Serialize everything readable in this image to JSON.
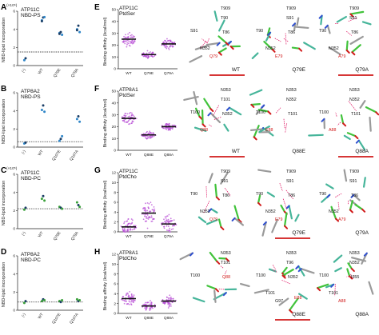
{
  "colors": {
    "blue": "#2f86c8",
    "green": "#3aa13a",
    "purple": "#b84fd6",
    "red": "#d11a1a",
    "dark": "#1b3e66",
    "stick_green": "#41c33b",
    "stick_teal": "#46b59a",
    "stick_blue": "#3050d0",
    "stick_grey": "#9a9a9a"
  },
  "panels_left": [
    {
      "letter": "A",
      "protein": "ATP11C",
      "lipid": "NBD-PS",
      "lipid_color": "blue",
      "exp": "(×10⁶)",
      "ymax": 6,
      "yticks": [
        "0",
        "2",
        "4",
        "6"
      ],
      "xlabels": [
        "(-)",
        "WT",
        "Q79E",
        "Q79A"
      ],
      "baseline": 1.5,
      "chart_data": {
        "type": "scatter",
        "categories": [
          "(-)",
          "WT",
          "Q79E",
          "Q79A"
        ],
        "values": [
          [
            0.6,
            0.8
          ],
          [
            5.0,
            5.3,
            5.35,
            4.9
          ],
          [
            3.6,
            3.7,
            3.4,
            3.5
          ],
          [
            4.0,
            4.4,
            3.7,
            3.9
          ]
        ]
      }
    },
    {
      "letter": "B",
      "protein": "ATP8A2",
      "lipid": "NBD-PS",
      "lipid_color": "blue",
      "exp": "",
      "ymax": 6,
      "yticks": [
        "0",
        "2",
        "4",
        "6"
      ],
      "xlabels": [
        "(-)",
        "WT",
        "Q107E",
        "Q107A"
      ],
      "baseline": 0.6,
      "chart_data": {
        "type": "scatter",
        "categories": [
          "(-)",
          "WT",
          "Q107E",
          "Q107A"
        ],
        "values": [
          [
            0.4,
            0.5
          ],
          [
            4.1,
            4.6,
            3.9
          ],
          [
            0.7,
            0.9,
            1.2
          ],
          [
            3.1,
            3.4,
            2.8
          ]
        ]
      }
    },
    {
      "letter": "C",
      "protein": "ATP11C",
      "lipid": "NBD-PC",
      "lipid_color": "green",
      "exp": "(×10⁵)",
      "ymax": 6,
      "yticks": [
        "0",
        "2",
        "4",
        "6"
      ],
      "xlabels": [
        "(-)",
        "WT",
        "Q79E",
        "Q79A"
      ],
      "baseline": 2.2,
      "chart_data": {
        "type": "scatter",
        "categories": [
          "(-)",
          "WT",
          "Q79E",
          "Q79A"
        ],
        "values": [
          [
            2.1,
            2.3
          ],
          [
            3.3,
            3.6,
            3.1
          ],
          [
            2.4,
            2.3,
            2.2
          ],
          [
            2.9,
            2.6,
            2.4
          ]
        ]
      }
    },
    {
      "letter": "D",
      "protein": "ATP8A2",
      "lipid": "NBD-PC",
      "lipid_color": "green",
      "exp": "",
      "ymax": 6,
      "yticks": [
        "0",
        "2",
        "4",
        "6"
      ],
      "xlabels": [
        "(-)",
        "WT",
        "Q107E",
        "Q107A"
      ],
      "baseline": 0.9,
      "chart_data": {
        "type": "scatter",
        "categories": [
          "(-)",
          "WT",
          "Q107E",
          "Q107A"
        ],
        "values": [
          [
            0.8,
            1.0
          ],
          [
            1.0,
            1.2,
            1.1
          ],
          [
            1.0,
            0.9,
            1.1
          ],
          [
            1.2,
            1.0,
            1.1
          ]
        ]
      }
    }
  ],
  "y_label_left": "NBD-lipid incorporation",
  "panels_mid": [
    {
      "letter": "E",
      "protein": "ATP11C",
      "lipid": "PtdSer",
      "lipid_color": "blue",
      "yticks": [
        "0",
        "10",
        "20",
        "30",
        "40",
        "50"
      ],
      "xlabels": [
        "WT",
        "Q79E",
        "Q79A"
      ],
      "chart_data": {
        "type": "scatter",
        "categories": [
          "WT",
          "Q79E",
          "Q79A"
        ],
        "medians": [
          25,
          12,
          21
        ],
        "spreads": [
          8,
          4,
          6
        ]
      }
    },
    {
      "letter": "F",
      "protein": "ATP8A1",
      "lipid": "PtdSer",
      "lipid_color": "blue",
      "yticks": [
        "0",
        "10",
        "20",
        "30",
        "40",
        "50"
      ],
      "xlabels": [
        "WT",
        "Q88E",
        "Q88A"
      ],
      "chart_data": {
        "type": "scatter",
        "categories": [
          "WT",
          "Q88E",
          "Q88A"
        ],
        "medians": [
          27,
          13,
          20
        ],
        "spreads": [
          7,
          4,
          4
        ]
      }
    },
    {
      "letter": "G",
      "protein": "ATP11C",
      "lipid": "PtdCho",
      "lipid_color": "green",
      "yticks": [
        "0",
        "2",
        "4",
        "6",
        "8",
        "10",
        "12"
      ],
      "xlabels": [
        "WT",
        "Q79E",
        "Q79A"
      ],
      "chart_data": {
        "type": "scatter",
        "categories": [
          "WT",
          "Q79E",
          "Q79A"
        ],
        "medians": [
          1.0,
          3.8,
          1.6
        ],
        "spreads": [
          2.5,
          3.5,
          2.5
        ]
      }
    },
    {
      "letter": "H",
      "protein": "ATP8A1",
      "lipid": "PtdCho",
      "lipid_color": "green",
      "yticks": [
        "0",
        "2",
        "4",
        "6",
        "8",
        "10",
        "12"
      ],
      "xlabels": [
        "WT",
        "Q88E",
        "Q88A"
      ],
      "chart_data": {
        "type": "scatter",
        "categories": [
          "WT",
          "Q88E",
          "Q88A"
        ],
        "medians": [
          3.0,
          1.5,
          2.5
        ],
        "spreads": [
          2.0,
          1.2,
          1.5
        ]
      }
    }
  ],
  "y_label_mid": "Binding affinity (kcal/mol)",
  "structures": [
    {
      "row": "E",
      "views": [
        {
          "labels": [
            "T909",
            "S91",
            "T90",
            "T86",
            "N352",
            "Q79"
          ],
          "red": "Q79",
          "caption": "WT",
          "underline": true
        },
        {
          "labels": [
            "T909",
            "T90",
            "S91",
            "T86",
            "N352",
            "E79"
          ],
          "red": "E79",
          "caption": "Q79E",
          "underline": false
        },
        {
          "labels": [
            "T909",
            "T90",
            "S91",
            "T86",
            "N352",
            "A79"
          ],
          "red": "A79",
          "caption": "Q79A",
          "underline": true
        }
      ]
    },
    {
      "row": "F",
      "views": [
        {
          "labels": [
            "N353",
            "T100",
            "T101",
            "N352",
            "Q88"
          ],
          "red": "Q88",
          "caption": "WT",
          "underline": true
        },
        {
          "labels": [
            "N353",
            "T100",
            "N352",
            "T101",
            "E88"
          ],
          "red": "E88",
          "caption": "Q88E",
          "underline": false
        },
        {
          "labels": [
            "N353",
            "T100",
            "N352",
            "T101",
            "A88"
          ],
          "red": "A88",
          "caption": "Q88A",
          "underline": true
        }
      ]
    },
    {
      "row": "G",
      "views": [
        {
          "labels": [
            "T909",
            "T90",
            "S91",
            "T86",
            "N352",
            "Q79"
          ],
          "red": "Q79",
          "caption": "",
          "underline": false
        },
        {
          "labels": [
            "T909",
            "T90",
            "S91",
            "T86",
            "N352",
            "E79"
          ],
          "red": "E79",
          "caption": "Q79E",
          "underline": true
        },
        {
          "labels": [
            "T909",
            "T90",
            "S91",
            "T86",
            "N352",
            "A79"
          ],
          "red": "A79",
          "caption": "Q79A",
          "underline": false
        }
      ]
    },
    {
      "row": "H",
      "views": [
        {
          "labels": [
            "N353",
            "T100",
            "T101",
            "Q88"
          ],
          "red": "Q88",
          "caption": "",
          "underline": false
        },
        {
          "labels": [
            "N353",
            "T100",
            "T96",
            "N352",
            "T101",
            "G97",
            "E88"
          ],
          "red": "E88",
          "caption": "Q88E",
          "underline": true
        },
        {
          "labels": [
            "N353",
            "T100",
            "N352",
            "I355",
            "T101",
            "A88"
          ],
          "red": "A88",
          "caption": "Q88A",
          "underline": false
        }
      ]
    }
  ]
}
